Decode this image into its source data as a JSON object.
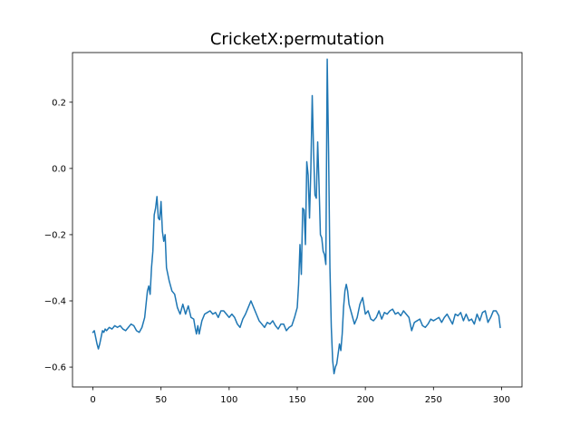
{
  "chart_data": {
    "type": "line",
    "title": "CricketX:permutation",
    "xlabel": "",
    "ylabel": "",
    "xlim": [
      -15,
      315
    ],
    "ylim": [
      -0.66,
      0.35
    ],
    "xticks": [
      0,
      50,
      100,
      150,
      200,
      250,
      300
    ],
    "xtick_labels": [
      "0",
      "50",
      "100",
      "150",
      "200",
      "250",
      "300"
    ],
    "yticks": [
      -0.6,
      -0.4,
      -0.2,
      0.0,
      0.2
    ],
    "ytick_labels": [
      "−0.6",
      "−0.4",
      "−0.2",
      "0.0",
      "0.2"
    ],
    "grid": false,
    "legend": "none",
    "series": [
      {
        "color": "#1f77b4",
        "points": [
          [
            0,
            -0.495
          ],
          [
            1,
            -0.49
          ],
          [
            2,
            -0.51
          ],
          [
            3,
            -0.53
          ],
          [
            4,
            -0.545
          ],
          [
            5,
            -0.53
          ],
          [
            6,
            -0.51
          ],
          [
            7,
            -0.49
          ],
          [
            8,
            -0.495
          ],
          [
            9,
            -0.485
          ],
          [
            10,
            -0.49
          ],
          [
            12,
            -0.48
          ],
          [
            14,
            -0.485
          ],
          [
            16,
            -0.475
          ],
          [
            18,
            -0.48
          ],
          [
            20,
            -0.475
          ],
          [
            22,
            -0.485
          ],
          [
            24,
            -0.49
          ],
          [
            26,
            -0.48
          ],
          [
            28,
            -0.47
          ],
          [
            30,
            -0.475
          ],
          [
            32,
            -0.49
          ],
          [
            34,
            -0.495
          ],
          [
            36,
            -0.48
          ],
          [
            38,
            -0.45
          ],
          [
            40,
            -0.37
          ],
          [
            41,
            -0.355
          ],
          [
            42,
            -0.38
          ],
          [
            43,
            -0.3
          ],
          [
            44,
            -0.25
          ],
          [
            45,
            -0.14
          ],
          [
            46,
            -0.12
          ],
          [
            47,
            -0.085
          ],
          [
            48,
            -0.15
          ],
          [
            49,
            -0.155
          ],
          [
            50,
            -0.1
          ],
          [
            51,
            -0.19
          ],
          [
            52,
            -0.22
          ],
          [
            53,
            -0.2
          ],
          [
            54,
            -0.3
          ],
          [
            56,
            -0.34
          ],
          [
            58,
            -0.37
          ],
          [
            60,
            -0.38
          ],
          [
            62,
            -0.42
          ],
          [
            64,
            -0.44
          ],
          [
            66,
            -0.41
          ],
          [
            68,
            -0.44
          ],
          [
            70,
            -0.415
          ],
          [
            72,
            -0.45
          ],
          [
            74,
            -0.455
          ],
          [
            75,
            -0.48
          ],
          [
            76,
            -0.5
          ],
          [
            77,
            -0.475
          ],
          [
            78,
            -0.5
          ],
          [
            80,
            -0.46
          ],
          [
            82,
            -0.44
          ],
          [
            84,
            -0.435
          ],
          [
            86,
            -0.43
          ],
          [
            88,
            -0.44
          ],
          [
            90,
            -0.435
          ],
          [
            92,
            -0.45
          ],
          [
            94,
            -0.43
          ],
          [
            96,
            -0.43
          ],
          [
            98,
            -0.44
          ],
          [
            100,
            -0.45
          ],
          [
            102,
            -0.44
          ],
          [
            104,
            -0.45
          ],
          [
            106,
            -0.47
          ],
          [
            108,
            -0.48
          ],
          [
            110,
            -0.455
          ],
          [
            112,
            -0.44
          ],
          [
            114,
            -0.42
          ],
          [
            116,
            -0.4
          ],
          [
            118,
            -0.42
          ],
          [
            120,
            -0.44
          ],
          [
            122,
            -0.46
          ],
          [
            124,
            -0.47
          ],
          [
            126,
            -0.48
          ],
          [
            128,
            -0.465
          ],
          [
            130,
            -0.47
          ],
          [
            132,
            -0.46
          ],
          [
            134,
            -0.475
          ],
          [
            136,
            -0.485
          ],
          [
            138,
            -0.47
          ],
          [
            140,
            -0.47
          ],
          [
            142,
            -0.49
          ],
          [
            144,
            -0.48
          ],
          [
            146,
            -0.475
          ],
          [
            148,
            -0.45
          ],
          [
            150,
            -0.42
          ],
          [
            151,
            -0.35
          ],
          [
            152,
            -0.23
          ],
          [
            153,
            -0.32
          ],
          [
            154,
            -0.12
          ],
          [
            155,
            -0.125
          ],
          [
            156,
            -0.23
          ],
          [
            157,
            0.02
          ],
          [
            158,
            -0.02
          ],
          [
            159,
            -0.15
          ],
          [
            160,
            0.0
          ],
          [
            161,
            0.22
          ],
          [
            162,
            0.05
          ],
          [
            163,
            -0.08
          ],
          [
            164,
            -0.09
          ],
          [
            165,
            0.08
          ],
          [
            166,
            -0.05
          ],
          [
            167,
            -0.2
          ],
          [
            168,
            -0.21
          ],
          [
            169,
            -0.25
          ],
          [
            170,
            -0.26
          ],
          [
            171,
            -0.29
          ],
          [
            172,
            0.33
          ],
          [
            173,
            0.05
          ],
          [
            174,
            -0.3
          ],
          [
            175,
            -0.48
          ],
          [
            176,
            -0.58
          ],
          [
            177,
            -0.62
          ],
          [
            178,
            -0.6
          ],
          [
            179,
            -0.59
          ],
          [
            180,
            -0.56
          ],
          [
            181,
            -0.53
          ],
          [
            182,
            -0.55
          ],
          [
            183,
            -0.5
          ],
          [
            184,
            -0.42
          ],
          [
            185,
            -0.37
          ],
          [
            186,
            -0.35
          ],
          [
            187,
            -0.37
          ],
          [
            188,
            -0.41
          ],
          [
            190,
            -0.44
          ],
          [
            192,
            -0.47
          ],
          [
            194,
            -0.45
          ],
          [
            196,
            -0.41
          ],
          [
            198,
            -0.39
          ],
          [
            200,
            -0.44
          ],
          [
            202,
            -0.43
          ],
          [
            204,
            -0.455
          ],
          [
            206,
            -0.46
          ],
          [
            208,
            -0.45
          ],
          [
            210,
            -0.43
          ],
          [
            212,
            -0.455
          ],
          [
            214,
            -0.435
          ],
          [
            216,
            -0.44
          ],
          [
            218,
            -0.43
          ],
          [
            220,
            -0.425
          ],
          [
            222,
            -0.44
          ],
          [
            224,
            -0.435
          ],
          [
            226,
            -0.445
          ],
          [
            228,
            -0.43
          ],
          [
            230,
            -0.44
          ],
          [
            232,
            -0.45
          ],
          [
            234,
            -0.49
          ],
          [
            236,
            -0.465
          ],
          [
            238,
            -0.46
          ],
          [
            240,
            -0.455
          ],
          [
            242,
            -0.475
          ],
          [
            244,
            -0.48
          ],
          [
            246,
            -0.47
          ],
          [
            248,
            -0.455
          ],
          [
            250,
            -0.46
          ],
          [
            252,
            -0.455
          ],
          [
            254,
            -0.45
          ],
          [
            256,
            -0.465
          ],
          [
            258,
            -0.45
          ],
          [
            260,
            -0.44
          ],
          [
            262,
            -0.455
          ],
          [
            264,
            -0.47
          ],
          [
            266,
            -0.44
          ],
          [
            268,
            -0.445
          ],
          [
            270,
            -0.435
          ],
          [
            272,
            -0.46
          ],
          [
            274,
            -0.44
          ],
          [
            276,
            -0.46
          ],
          [
            278,
            -0.455
          ],
          [
            280,
            -0.47
          ],
          [
            282,
            -0.44
          ],
          [
            284,
            -0.46
          ],
          [
            286,
            -0.435
          ],
          [
            288,
            -0.43
          ],
          [
            290,
            -0.465
          ],
          [
            292,
            -0.45
          ],
          [
            294,
            -0.43
          ],
          [
            296,
            -0.43
          ],
          [
            298,
            -0.445
          ],
          [
            299,
            -0.48
          ]
        ]
      }
    ]
  }
}
